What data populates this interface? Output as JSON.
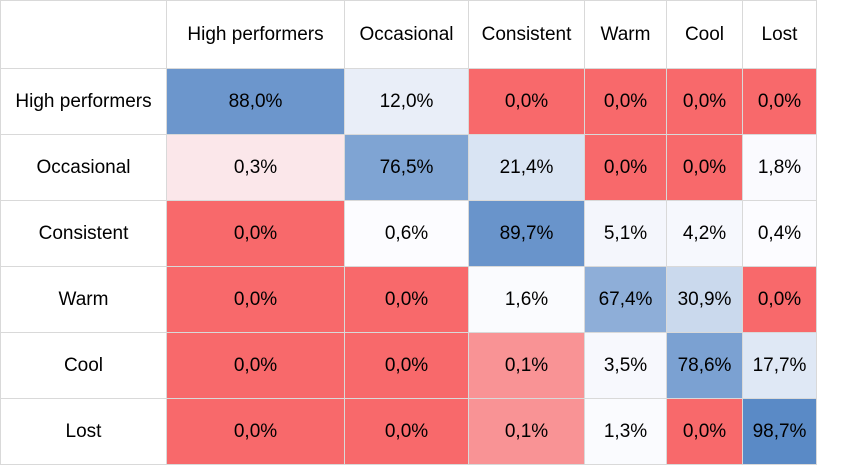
{
  "chart_data": {
    "type": "heatmap",
    "x": [
      "High performers",
      "Occasional",
      "Consistent",
      "Warm",
      "Cool",
      "Lost"
    ],
    "y": [
      "High performers",
      "Occasional",
      "Consistent",
      "Warm",
      "Cool",
      "Lost"
    ],
    "values": [
      [
        88.0,
        12.0,
        0.0,
        0.0,
        0.0,
        0.0
      ],
      [
        0.3,
        76.5,
        21.4,
        0.0,
        0.0,
        1.8
      ],
      [
        0.0,
        0.6,
        89.7,
        5.1,
        4.2,
        0.4
      ],
      [
        0.0,
        0.0,
        1.6,
        67.4,
        30.9,
        0.0
      ],
      [
        0.0,
        0.0,
        0.1,
        3.5,
        78.6,
        17.7
      ],
      [
        0.0,
        0.0,
        0.1,
        1.3,
        0.0,
        98.7
      ]
    ],
    "labels": [
      [
        "88,0%",
        "12,0%",
        "0,0%",
        "0,0%",
        "0,0%",
        "0,0%"
      ],
      [
        "0,3%",
        "76,5%",
        "21,4%",
        "0,0%",
        "0,0%",
        "1,8%"
      ],
      [
        "0,0%",
        "0,6%",
        "89,7%",
        "5,1%",
        "4,2%",
        "0,4%"
      ],
      [
        "0,0%",
        "0,0%",
        "1,6%",
        "67,4%",
        "30,9%",
        "0,0%"
      ],
      [
        "0,0%",
        "0,0%",
        "0,1%",
        "3,5%",
        "78,6%",
        "17,7%"
      ],
      [
        "0,0%",
        "0,0%",
        "0,1%",
        "1,3%",
        "0,0%",
        "98,7%"
      ]
    ],
    "colors": {
      "low": "#f8696b",
      "mid": "#fcfcff",
      "high": "#5a8ac6"
    }
  }
}
